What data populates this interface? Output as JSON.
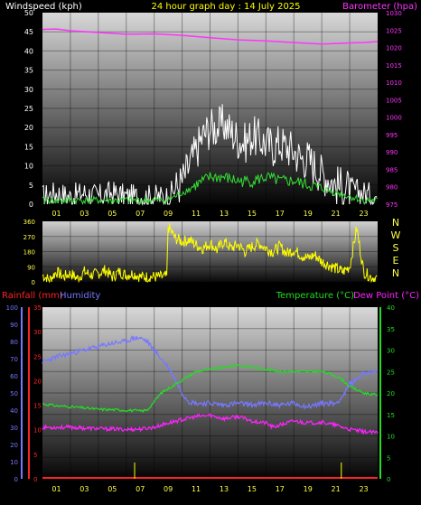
{
  "header": {
    "left": "Windspeed (kph)",
    "center": "24 hour graph day : 14 July 2025",
    "right": "Barometer (hpa)"
  },
  "colors": {
    "wind": "#ffffff",
    "wind_avg": "#33dd33",
    "barometer": "#ff33ff",
    "direction": "#ffff00",
    "rain": "#ff2222",
    "humidity": "#7777ff",
    "temperature": "#22dd22",
    "dewpoint": "#ff22ff",
    "axis_text": "#ffffff",
    "hour_labels": "#ffff44"
  },
  "chart_data": [
    {
      "type": "line",
      "title": "24 hour graph day : 14 July 2025",
      "ylabel": "Windspeed (kph)",
      "ylabel_right": "Barometer (hpa)",
      "x_ticks": [
        "01",
        "03",
        "05",
        "07",
        "09",
        "11",
        "13",
        "15",
        "17",
        "19",
        "21",
        "23"
      ],
      "xlim": [
        0,
        24
      ],
      "ylim": [
        0,
        50
      ],
      "ylim_right": [
        975,
        1030
      ],
      "y_ticks": [
        0,
        5,
        10,
        15,
        20,
        25,
        30,
        35,
        40,
        45,
        50
      ],
      "y_ticks_right": [
        975,
        980,
        985,
        990,
        995,
        1000,
        1005,
        1010,
        1015,
        1020,
        1025,
        1030
      ],
      "grid": true,
      "series": [
        {
          "name": "Windspeed (kph)",
          "axis": "left",
          "x": [
            0,
            1,
            2,
            3,
            4,
            5,
            6,
            7,
            8,
            9,
            10,
            10.5,
            11,
            11.5,
            12,
            12.5,
            13,
            13.5,
            14,
            14.5,
            15,
            15.5,
            16,
            16.5,
            17,
            17.5,
            18,
            18.5,
            19,
            19.5,
            20,
            20.5,
            21,
            22,
            23,
            24
          ],
          "y": [
            2,
            3,
            2,
            3,
            2,
            3,
            2,
            2,
            2,
            2,
            6,
            10,
            14,
            18,
            20,
            20,
            21,
            19,
            17,
            16,
            18,
            17,
            16,
            15,
            16,
            15,
            14,
            12,
            12,
            10,
            8,
            7,
            5,
            4,
            3,
            2
          ]
        },
        {
          "name": "Average wind",
          "axis": "left",
          "x": [
            0,
            2,
            4,
            6,
            8,
            9,
            10,
            11,
            12,
            13,
            14,
            15,
            16,
            17,
            18,
            19,
            20,
            21,
            22,
            23,
            24
          ],
          "y": [
            1,
            1,
            1,
            1,
            1,
            1,
            3,
            5,
            7,
            7,
            6,
            6,
            7,
            6,
            6,
            5,
            4,
            3,
            2,
            1,
            1
          ]
        },
        {
          "name": "Barometer (hpa)",
          "axis": "right",
          "x": [
            0,
            1,
            2,
            4,
            6,
            8,
            10,
            12,
            14,
            16,
            18,
            19,
            20,
            22,
            23,
            24
          ],
          "y": [
            1025.2,
            1025.3,
            1024.8,
            1024.3,
            1023.8,
            1023.9,
            1023.5,
            1022.8,
            1022.2,
            1021.9,
            1021.4,
            1021.2,
            1021.0,
            1021.3,
            1021.4,
            1021.7
          ]
        }
      ]
    },
    {
      "type": "line",
      "title": "",
      "ylabel": "",
      "direction_labels": [
        "N",
        "W",
        "S",
        "E",
        "N"
      ],
      "x_ticks": [],
      "xlim": [
        0,
        24
      ],
      "ylim": [
        0,
        360
      ],
      "y_ticks": [
        0,
        90,
        180,
        270,
        360
      ],
      "grid": true,
      "series": [
        {
          "name": "Wind direction",
          "x": [
            0,
            0.5,
            1,
            1.5,
            2,
            2.5,
            3,
            3.5,
            4,
            4.5,
            5,
            5.5,
            6,
            6.5,
            7,
            7.5,
            8,
            8.5,
            8.9,
            9,
            9.5,
            10,
            10.5,
            11,
            11.5,
            12,
            12.5,
            13,
            13.5,
            14,
            14.5,
            15,
            15.5,
            16,
            16.5,
            17,
            17.5,
            18,
            18.5,
            19,
            19.5,
            20,
            20.5,
            21,
            21.5,
            22,
            22.5,
            23,
            23.5,
            24
          ],
          "y": [
            40,
            10,
            60,
            30,
            50,
            20,
            60,
            40,
            50,
            70,
            30,
            60,
            40,
            50,
            30,
            30,
            30,
            30,
            30,
            330,
            260,
            240,
            250,
            220,
            200,
            230,
            190,
            240,
            200,
            220,
            180,
            210,
            230,
            200,
            180,
            210,
            170,
            190,
            160,
            140,
            160,
            120,
            100,
            80,
            60,
            90,
            320,
            60,
            30,
            20
          ]
        }
      ]
    },
    {
      "type": "line",
      "title": "",
      "ylabel": "Rainfall (mm)",
      "ylabel2": "Humidity",
      "ylabel_right": "Temperature (°C)",
      "ylabel_right2": "Dew Point (°C)",
      "x_ticks": [
        "01",
        "03",
        "05",
        "07",
        "09",
        "11",
        "13",
        "15",
        "17",
        "19",
        "21",
        "23"
      ],
      "xlim": [
        0,
        24
      ],
      "ylim_rain": [
        0,
        35
      ],
      "ylim_humidity": [
        0,
        100
      ],
      "ylim": [
        0,
        40
      ],
      "y_ticks_rain": [
        0,
        5,
        10,
        15,
        20,
        25,
        30,
        35
      ],
      "y_ticks_humidity": [
        0,
        10,
        20,
        30,
        40,
        50,
        60,
        70,
        80,
        90,
        100
      ],
      "y_ticks": [
        0,
        5,
        10,
        15,
        20,
        25,
        30,
        35,
        40
      ],
      "grid": true,
      "series": [
        {
          "name": "Humidity",
          "axis": "humidity",
          "x": [
            0,
            1,
            2,
            3,
            4,
            5,
            6,
            6.5,
            7,
            7.5,
            8,
            8.5,
            9,
            9.5,
            10,
            10.5,
            11,
            12,
            13,
            14,
            15,
            16,
            17,
            18,
            19,
            20,
            21,
            21.5,
            22,
            22.5,
            23,
            24
          ],
          "y": [
            68,
            71,
            73,
            75,
            77,
            79,
            80,
            82,
            82,
            80,
            75,
            70,
            65,
            58,
            50,
            45,
            44,
            44,
            43,
            44,
            43,
            44,
            43,
            44,
            42,
            44,
            44,
            48,
            55,
            58,
            62,
            62
          ]
        },
        {
          "name": "Temperature (°C)",
          "axis": "right",
          "x": [
            0,
            1,
            2,
            3,
            4,
            5,
            6,
            7,
            7.5,
            8,
            8.5,
            9,
            9.5,
            10,
            11,
            12,
            13,
            14,
            15,
            16,
            17,
            18,
            19,
            20,
            21,
            21.5,
            22,
            23,
            24
          ],
          "y": [
            17.5,
            17,
            16.8,
            16.5,
            16.2,
            16.1,
            16,
            15.8,
            16,
            18,
            20,
            21,
            22,
            23,
            25,
            25.5,
            26,
            26.5,
            26,
            25.5,
            25,
            25,
            25,
            25,
            24,
            23,
            21.5,
            20,
            19.5
          ]
        },
        {
          "name": "Dew Point (°C)",
          "axis": "right",
          "x": [
            0,
            1,
            2,
            3,
            4,
            5,
            6,
            7,
            8,
            9,
            10,
            11,
            12,
            13,
            14,
            15,
            16,
            16.5,
            17,
            18,
            19,
            20,
            21,
            22,
            23,
            24
          ],
          "y": [
            12,
            12,
            12,
            11.8,
            11.7,
            11.6,
            11.5,
            11.6,
            12,
            13,
            13.8,
            14.5,
            14.8,
            14,
            14.5,
            13.5,
            13,
            12,
            12.5,
            13.5,
            13,
            13.2,
            12.5,
            11.5,
            11,
            10.7
          ]
        },
        {
          "name": "Rainfall (mm)",
          "axis": "rain",
          "x": [
            0,
            24
          ],
          "y": [
            0,
            0
          ]
        }
      ]
    }
  ]
}
